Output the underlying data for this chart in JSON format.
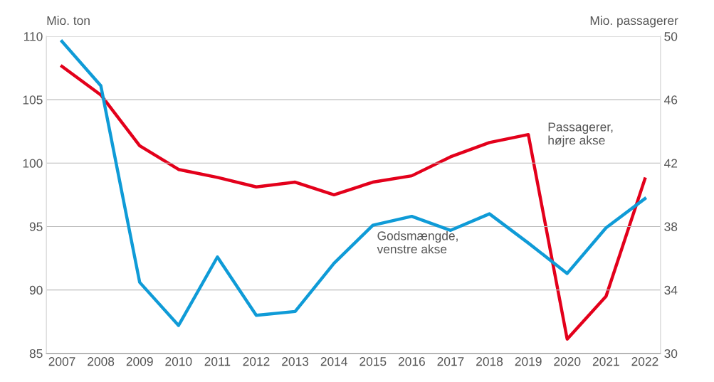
{
  "chart_data": {
    "type": "line",
    "ylabel": "Mio. ton",
    "y2label": "Mio. passagerer",
    "categories": [
      "2007",
      "2008",
      "2009",
      "2010",
      "2011",
      "2012",
      "2013",
      "2014",
      "2015",
      "2016",
      "2017",
      "2018",
      "2019",
      "2020",
      "2021",
      "2022"
    ],
    "series": [
      {
        "color": "#0f9bd7",
        "values": [
          109.6,
          106.1,
          90.6,
          87.2,
          92.6,
          88.0,
          88.3,
          92.1,
          95.1,
          95.8,
          94.7,
          96.0,
          93.7,
          91.3,
          94.9,
          97.2
        ]
      },
      {
        "color": "#e3001b",
        "axis": "y2",
        "values": [
          48.1,
          46.3,
          43.1,
          41.6,
          41.1,
          40.5,
          40.8,
          40.0,
          40.8,
          41.2,
          42.4,
          43.3,
          43.8,
          30.9,
          33.6,
          41.0
        ]
      }
    ],
    "ylim": [
      85,
      110
    ],
    "yticks": [
      85,
      90,
      95,
      100,
      105,
      110
    ],
    "y2lim": [
      30,
      50
    ],
    "y2ticks": [
      30,
      34,
      38,
      42,
      46,
      50
    ],
    "grid": "y",
    "legend": false,
    "marker": "none",
    "line_style": "solid",
    "annotations": [
      "Godsmængde,\nvenstre akse",
      "Passagerer,\nhøjre akse"
    ]
  }
}
